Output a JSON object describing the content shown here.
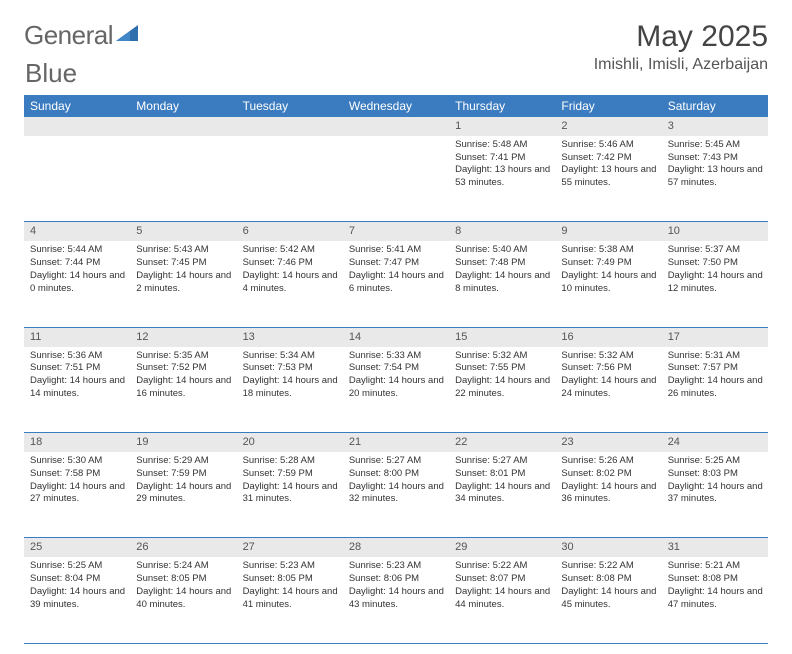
{
  "brand": {
    "part1": "General",
    "part2": "Blue"
  },
  "title": "May 2025",
  "location": "Imishli, Imisli, Azerbaijan",
  "colors": {
    "header_bg": "#3b7bbf",
    "header_text": "#ffffff",
    "daynum_bg": "#e9e9e9",
    "row_border": "#3b7bbf",
    "logo_shape": "#2f6fad"
  },
  "day_headers": [
    "Sunday",
    "Monday",
    "Tuesday",
    "Wednesday",
    "Thursday",
    "Friday",
    "Saturday"
  ],
  "weeks": [
    [
      {
        "n": "",
        "lines": []
      },
      {
        "n": "",
        "lines": []
      },
      {
        "n": "",
        "lines": []
      },
      {
        "n": "",
        "lines": []
      },
      {
        "n": "1",
        "lines": [
          "Sunrise: 5:48 AM",
          "Sunset: 7:41 PM",
          "Daylight: 13 hours and 53 minutes."
        ]
      },
      {
        "n": "2",
        "lines": [
          "Sunrise: 5:46 AM",
          "Sunset: 7:42 PM",
          "Daylight: 13 hours and 55 minutes."
        ]
      },
      {
        "n": "3",
        "lines": [
          "Sunrise: 5:45 AM",
          "Sunset: 7:43 PM",
          "Daylight: 13 hours and 57 minutes."
        ]
      }
    ],
    [
      {
        "n": "4",
        "lines": [
          "Sunrise: 5:44 AM",
          "Sunset: 7:44 PM",
          "Daylight: 14 hours and 0 minutes."
        ]
      },
      {
        "n": "5",
        "lines": [
          "Sunrise: 5:43 AM",
          "Sunset: 7:45 PM",
          "Daylight: 14 hours and 2 minutes."
        ]
      },
      {
        "n": "6",
        "lines": [
          "Sunrise: 5:42 AM",
          "Sunset: 7:46 PM",
          "Daylight: 14 hours and 4 minutes."
        ]
      },
      {
        "n": "7",
        "lines": [
          "Sunrise: 5:41 AM",
          "Sunset: 7:47 PM",
          "Daylight: 14 hours and 6 minutes."
        ]
      },
      {
        "n": "8",
        "lines": [
          "Sunrise: 5:40 AM",
          "Sunset: 7:48 PM",
          "Daylight: 14 hours and 8 minutes."
        ]
      },
      {
        "n": "9",
        "lines": [
          "Sunrise: 5:38 AM",
          "Sunset: 7:49 PM",
          "Daylight: 14 hours and 10 minutes."
        ]
      },
      {
        "n": "10",
        "lines": [
          "Sunrise: 5:37 AM",
          "Sunset: 7:50 PM",
          "Daylight: 14 hours and 12 minutes."
        ]
      }
    ],
    [
      {
        "n": "11",
        "lines": [
          "Sunrise: 5:36 AM",
          "Sunset: 7:51 PM",
          "Daylight: 14 hours and 14 minutes."
        ]
      },
      {
        "n": "12",
        "lines": [
          "Sunrise: 5:35 AM",
          "Sunset: 7:52 PM",
          "Daylight: 14 hours and 16 minutes."
        ]
      },
      {
        "n": "13",
        "lines": [
          "Sunrise: 5:34 AM",
          "Sunset: 7:53 PM",
          "Daylight: 14 hours and 18 minutes."
        ]
      },
      {
        "n": "14",
        "lines": [
          "Sunrise: 5:33 AM",
          "Sunset: 7:54 PM",
          "Daylight: 14 hours and 20 minutes."
        ]
      },
      {
        "n": "15",
        "lines": [
          "Sunrise: 5:32 AM",
          "Sunset: 7:55 PM",
          "Daylight: 14 hours and 22 minutes."
        ]
      },
      {
        "n": "16",
        "lines": [
          "Sunrise: 5:32 AM",
          "Sunset: 7:56 PM",
          "Daylight: 14 hours and 24 minutes."
        ]
      },
      {
        "n": "17",
        "lines": [
          "Sunrise: 5:31 AM",
          "Sunset: 7:57 PM",
          "Daylight: 14 hours and 26 minutes."
        ]
      }
    ],
    [
      {
        "n": "18",
        "lines": [
          "Sunrise: 5:30 AM",
          "Sunset: 7:58 PM",
          "Daylight: 14 hours and 27 minutes."
        ]
      },
      {
        "n": "19",
        "lines": [
          "Sunrise: 5:29 AM",
          "Sunset: 7:59 PM",
          "Daylight: 14 hours and 29 minutes."
        ]
      },
      {
        "n": "20",
        "lines": [
          "Sunrise: 5:28 AM",
          "Sunset: 7:59 PM",
          "Daylight: 14 hours and 31 minutes."
        ]
      },
      {
        "n": "21",
        "lines": [
          "Sunrise: 5:27 AM",
          "Sunset: 8:00 PM",
          "Daylight: 14 hours and 32 minutes."
        ]
      },
      {
        "n": "22",
        "lines": [
          "Sunrise: 5:27 AM",
          "Sunset: 8:01 PM",
          "Daylight: 14 hours and 34 minutes."
        ]
      },
      {
        "n": "23",
        "lines": [
          "Sunrise: 5:26 AM",
          "Sunset: 8:02 PM",
          "Daylight: 14 hours and 36 minutes."
        ]
      },
      {
        "n": "24",
        "lines": [
          "Sunrise: 5:25 AM",
          "Sunset: 8:03 PM",
          "Daylight: 14 hours and 37 minutes."
        ]
      }
    ],
    [
      {
        "n": "25",
        "lines": [
          "Sunrise: 5:25 AM",
          "Sunset: 8:04 PM",
          "Daylight: 14 hours and 39 minutes."
        ]
      },
      {
        "n": "26",
        "lines": [
          "Sunrise: 5:24 AM",
          "Sunset: 8:05 PM",
          "Daylight: 14 hours and 40 minutes."
        ]
      },
      {
        "n": "27",
        "lines": [
          "Sunrise: 5:23 AM",
          "Sunset: 8:05 PM",
          "Daylight: 14 hours and 41 minutes."
        ]
      },
      {
        "n": "28",
        "lines": [
          "Sunrise: 5:23 AM",
          "Sunset: 8:06 PM",
          "Daylight: 14 hours and 43 minutes."
        ]
      },
      {
        "n": "29",
        "lines": [
          "Sunrise: 5:22 AM",
          "Sunset: 8:07 PM",
          "Daylight: 14 hours and 44 minutes."
        ]
      },
      {
        "n": "30",
        "lines": [
          "Sunrise: 5:22 AM",
          "Sunset: 8:08 PM",
          "Daylight: 14 hours and 45 minutes."
        ]
      },
      {
        "n": "31",
        "lines": [
          "Sunrise: 5:21 AM",
          "Sunset: 8:08 PM",
          "Daylight: 14 hours and 47 minutes."
        ]
      }
    ]
  ]
}
